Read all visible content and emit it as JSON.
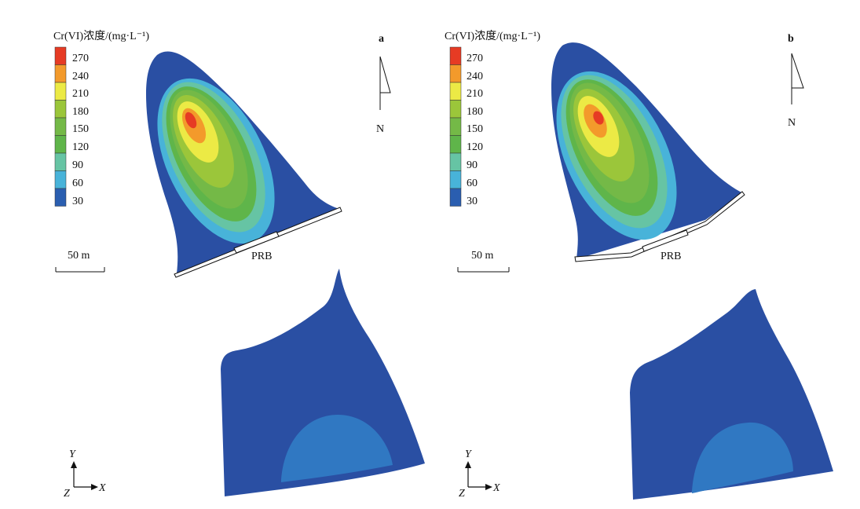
{
  "panels": [
    {
      "label": "a",
      "legend_title": "Cr(VI)浓度/(mg·L⁻¹)",
      "legend_values": [
        "270",
        "240",
        "210",
        "180",
        "150",
        "120",
        "90",
        "60",
        "30"
      ],
      "scale_label": "50 m",
      "north_label": "N",
      "barrier_label": "PRB",
      "axis_y": "Y",
      "axis_x": "X",
      "axis_z": "Z"
    },
    {
      "label": "b",
      "legend_title": "Cr(VI)浓度/(mg·L⁻¹)",
      "legend_values": [
        "270",
        "240",
        "210",
        "180",
        "150",
        "120",
        "90",
        "60",
        "30"
      ],
      "scale_label": "50 m",
      "north_label": "N",
      "barrier_label": "PRB",
      "axis_y": "Y",
      "axis_x": "X",
      "axis_z": "Z"
    }
  ],
  "colors": {
    "c270": "#e63b24",
    "c240": "#f39a2b",
    "c210": "#ecea45",
    "c180": "#9bc63a",
    "c150": "#74b947",
    "c120": "#5fb54a",
    "c90": "#66c4a4",
    "c60": "#48b3d9",
    "c30": "#2a5eb0",
    "bg_plume": "#2a4fa3",
    "inner_dome": "#3078c2"
  }
}
